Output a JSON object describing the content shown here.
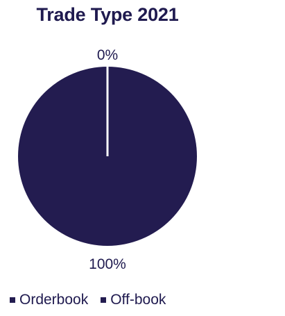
{
  "chart_data": {
    "type": "pie",
    "title": "Trade Type 2021",
    "categories": [
      "Orderbook",
      "Off-book"
    ],
    "values": [
      100,
      0
    ],
    "data_labels": [
      "100%",
      "0%"
    ],
    "colors": [
      "#231c50",
      "#231c50"
    ],
    "legend": "bottom"
  }
}
